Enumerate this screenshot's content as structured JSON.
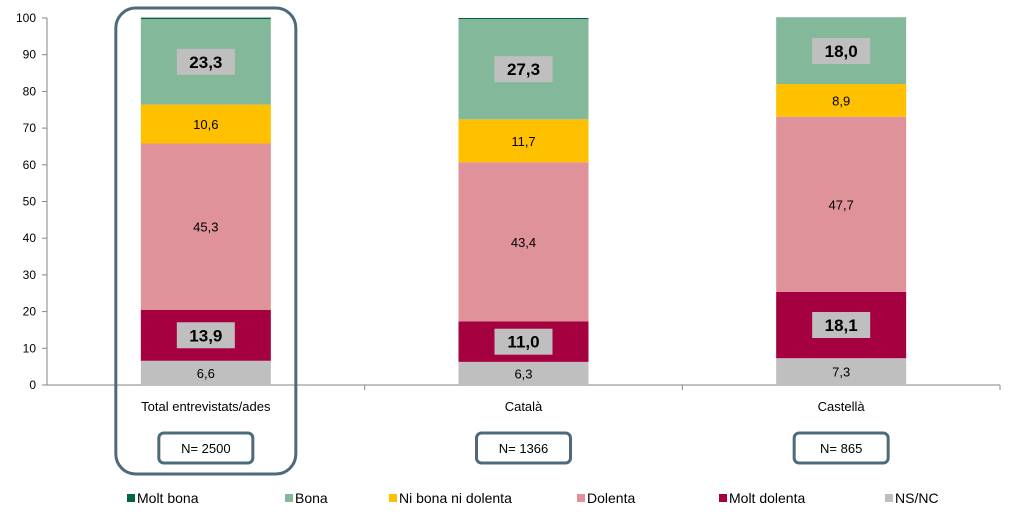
{
  "chart_data": {
    "type": "bar",
    "stacked": true,
    "categories": [
      "Total entrevistats/ades",
      "Català",
      "Castellà"
    ],
    "n_labels": [
      "N= 2500",
      "N= 1366",
      "N= 865"
    ],
    "ylim": [
      0,
      100
    ],
    "yticks": [
      "0",
      "10",
      "20",
      "30",
      "40",
      "50",
      "60",
      "70",
      "80",
      "90",
      "100"
    ],
    "grid": false,
    "legend_position": "bottom",
    "series": [
      {
        "name": "NS/NC",
        "color": "#BFBFBF",
        "values": [
          6.6,
          6.3,
          7.3
        ],
        "labels": [
          "6,6",
          "6,3",
          "7,3"
        ],
        "label_style": "plain"
      },
      {
        "name": "Molt dolenta",
        "color": "#A50040",
        "values": [
          13.9,
          11.0,
          18.1
        ],
        "labels": [
          "13,9",
          "11,0",
          "18,1"
        ],
        "label_style": "boxed"
      },
      {
        "name": "Dolenta",
        "color": "#E0929A",
        "values": [
          45.3,
          43.4,
          47.7
        ],
        "labels": [
          "45,3",
          "43,4",
          "47,7"
        ],
        "label_style": "plain"
      },
      {
        "name": "Ni bona ni dolenta",
        "color": "#FFC000",
        "values": [
          10.6,
          11.7,
          8.9
        ],
        "labels": [
          "10,6",
          "11,7",
          "8,9"
        ],
        "label_style": "plain"
      },
      {
        "name": "Bona",
        "color": "#84B89B",
        "values": [
          23.3,
          27.3,
          18.0
        ],
        "labels": [
          "23,3",
          "27,3",
          "18,0"
        ],
        "label_style": "boxed"
      },
      {
        "name": "Molt bona",
        "color": "#00663E",
        "values": [
          0.4,
          0.3,
          0.1
        ],
        "labels": [
          "",
          "",
          ""
        ],
        "label_style": "none"
      }
    ],
    "legend": [
      "Molt bona",
      "Bona",
      "Ni bona ni dolenta",
      "Dolenta",
      "Molt dolenta",
      "NS/NC"
    ],
    "highlight_category": 0,
    "box_border_color": "#4D6A7A"
  }
}
